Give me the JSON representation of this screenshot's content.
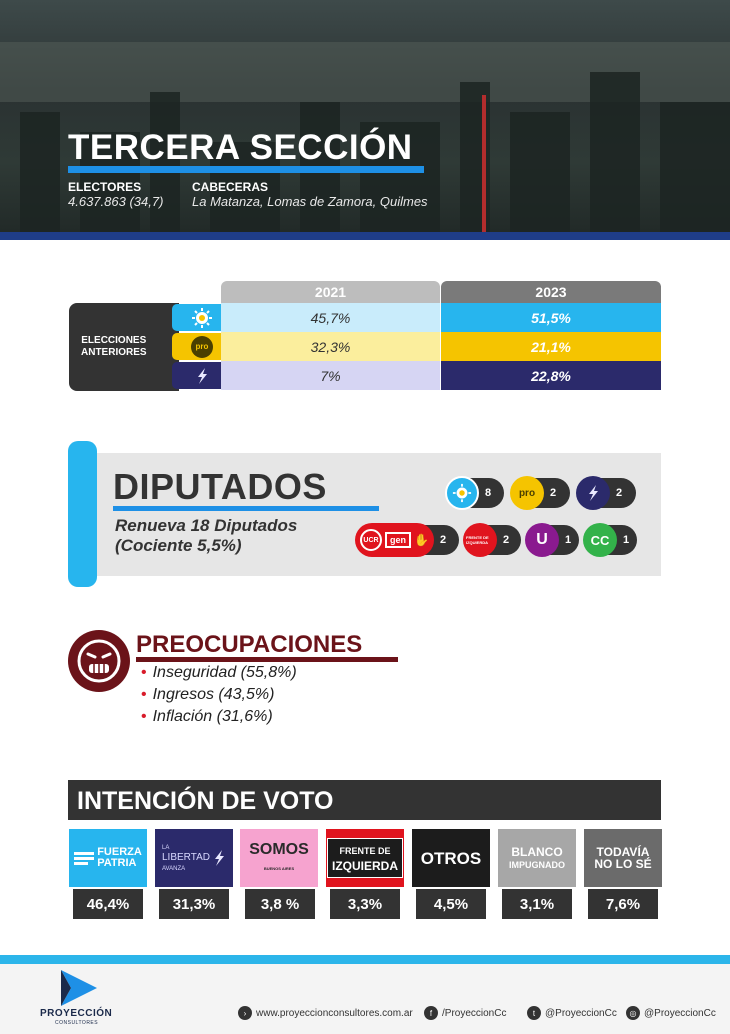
{
  "header": {
    "title": "TERCERA SECCIÓN",
    "electores_label": "ELECTORES",
    "electores_value": "4.637.863 (34,7)",
    "cabeceras_label": "CABECERAS",
    "cabeceras_value": "La Matanza, Lomas de Zamora, Quilmes"
  },
  "previous_elections": {
    "label_line1": "ELECCIONES",
    "label_line2": "ANTERIORES",
    "years": [
      "2021",
      "2023"
    ],
    "rows": [
      {
        "party_icon": "sun-icon",
        "color": "#27b5ee",
        "values": [
          "45,7%",
          "51,5%"
        ]
      },
      {
        "party_icon": "pro-icon",
        "color": "#f5c400",
        "pro_text": "pro",
        "values": [
          "32,3%",
          "21,1%"
        ]
      },
      {
        "party_icon": "libertad-icon",
        "color": "#2b2a6b",
        "values": [
          "7%",
          "22,8%"
        ]
      }
    ]
  },
  "diputados": {
    "title": "DIPUTADOS",
    "subtitle_line1": "Renueva 18 Diputados",
    "subtitle_line2": "(Cociente 5,5%)",
    "seats": [
      {
        "party": "sun-icon",
        "count": "8"
      },
      {
        "party": "pro-icon",
        "label": "pro",
        "count": "2"
      },
      {
        "party": "libertad-icon",
        "count": "2"
      },
      {
        "party": "ucr-gen-icon",
        "label1": "UCR",
        "label2": "gen",
        "count": "2"
      },
      {
        "party": "frente-izquierda-icon",
        "label": "FRENTE DE IZQUIERDA",
        "count": "2"
      },
      {
        "party": "u-icon",
        "label": "U",
        "count": "1"
      },
      {
        "party": "cc-icon",
        "label": "CC",
        "count": "1"
      }
    ]
  },
  "preocupaciones": {
    "title": "PREOCUPACIONES",
    "items": [
      "Inseguridad (55,8%)",
      "Ingresos (43,5%)",
      "Inflación (31,6%)"
    ]
  },
  "intencion": {
    "title": "INTENCIÓN DE VOTO",
    "parties": [
      {
        "logo": "fuerza-patria-icon",
        "line1": "FUERZA",
        "line2": "PATRIA",
        "color": "#27b5ee",
        "pct": "46,4%"
      },
      {
        "logo": "libertad-avanza-icon",
        "line1": "LA",
        "line2": "LIBERTAD",
        "line3": "AVANZA",
        "color": "#2b2a6b",
        "pct": "31,3%"
      },
      {
        "logo": "somos-icon",
        "line1": "SOMOS",
        "line2": "BUENOS AIRES",
        "color": "#f6a3cf",
        "pct": "3,8 %"
      },
      {
        "logo": "frente-izquierda-icon",
        "line1": "FRENTE DE",
        "line2": "IZQUIERDA",
        "color": "#e0141e",
        "pct": "3,3%"
      },
      {
        "logo": "otros-icon",
        "line1": "OTROS",
        "color": "#1c1c1c",
        "pct": "4,5%"
      },
      {
        "logo": "blanco-icon",
        "line1": "BLANCO",
        "line2": "IMPUGNADO",
        "color": "#a7a7a7",
        "pct": "3,1%"
      },
      {
        "logo": "nose-icon",
        "line1": "TODAVÍA",
        "line2": "NO LO SÉ",
        "color": "#6b6b6b",
        "pct": "7,6%"
      }
    ]
  },
  "footer": {
    "brand": "PROYECCIÓN",
    "brand_sub": "CONSULTORES",
    "web": "www.proyeccionconsultores.com.ar",
    "facebook": "/ProyeccionCc",
    "twitter": "@ProyeccionCc",
    "instagram": "@ProyeccionCc"
  }
}
